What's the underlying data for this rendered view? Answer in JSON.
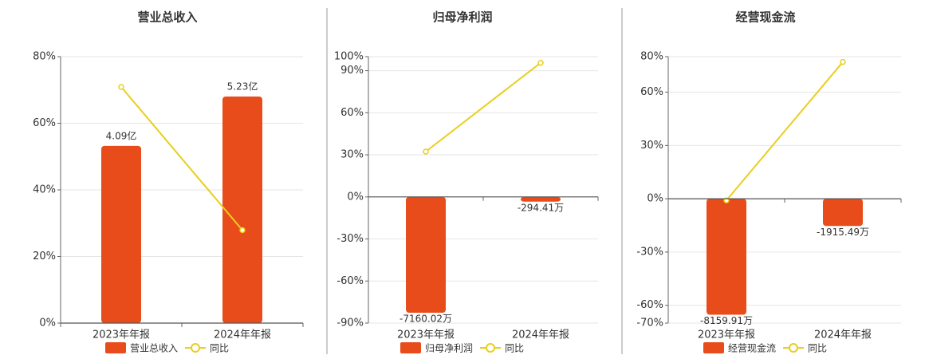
{
  "chart_data": [
    {
      "type": "bar_line",
      "title": "营业总收入",
      "categories": [
        "2023年年报",
        "2024年年报"
      ],
      "series": [
        {
          "name": "营业总收入",
          "color": "#e84c1b",
          "axis": "y2",
          "values": [
            4.09,
            5.23
          ],
          "value_labels": [
            "4.09亿",
            "5.23亿"
          ]
        },
        {
          "name": "同比",
          "color": "#e8cf1c",
          "values": [
            70.9,
            27.9
          ]
        }
      ],
      "ylim": [
        0,
        80
      ],
      "yticks": [
        {
          "value": 0,
          "label": "0%"
        },
        {
          "value": 20,
          "label": "20%"
        },
        {
          "value": 40,
          "label": "40%"
        },
        {
          "value": 60,
          "label": "60%"
        },
        {
          "value": 80,
          "label": "80%"
        }
      ],
      "y2lim": [
        0,
        6.15
      ],
      "grid": true
    },
    {
      "type": "bar_line",
      "title": "归母净利润",
      "categories": [
        "2023年年报",
        "2024年年报"
      ],
      "series": [
        {
          "name": "归母净利润",
          "color": "#e84c1b",
          "axis": "y2",
          "values": [
            -7160.02,
            -294.41
          ],
          "value_labels": [
            "-7160.02万",
            "-294.41万"
          ]
        },
        {
          "name": "同比",
          "color": "#e8cf1c",
          "values": [
            32.3,
            95.6
          ]
        }
      ],
      "ylim": [
        -90,
        100
      ],
      "yticks": [
        {
          "value": -90,
          "label": "-90%"
        },
        {
          "value": -60,
          "label": "-60%"
        },
        {
          "value": -30,
          "label": "-30%"
        },
        {
          "value": 0,
          "label": "0%"
        },
        {
          "value": 30,
          "label": "30%"
        },
        {
          "value": 60,
          "label": "60%"
        },
        {
          "value": 90,
          "label": "90%"
        },
        {
          "value": 100,
          "label": "100%"
        }
      ],
      "y2lim": [
        -7800,
        8670
      ],
      "grid": true
    },
    {
      "type": "bar_line",
      "title": "经营现金流",
      "categories": [
        "2023年年报",
        "2024年年报"
      ],
      "series": [
        {
          "name": "经营现金流",
          "color": "#e84c1b",
          "axis": "y2",
          "values": [
            -8159.91,
            -1915.49
          ],
          "value_labels": [
            "-8159.91万",
            "-1915.49万"
          ]
        },
        {
          "name": "同比",
          "color": "#e8cf1c",
          "values": [
            -0.9,
            77.0
          ]
        }
      ],
      "ylim": [
        -70,
        80
      ],
      "yticks": [
        {
          "value": -70,
          "label": "-70%"
        },
        {
          "value": -60,
          "label": "-60%"
        },
        {
          "value": -30,
          "label": "-30%"
        },
        {
          "value": 0,
          "label": "0%"
        },
        {
          "value": 30,
          "label": "30%"
        },
        {
          "value": 60,
          "label": "60%"
        },
        {
          "value": 80,
          "label": "80%"
        }
      ],
      "y2lim": [
        -8750,
        10000
      ],
      "grid": true
    }
  ]
}
